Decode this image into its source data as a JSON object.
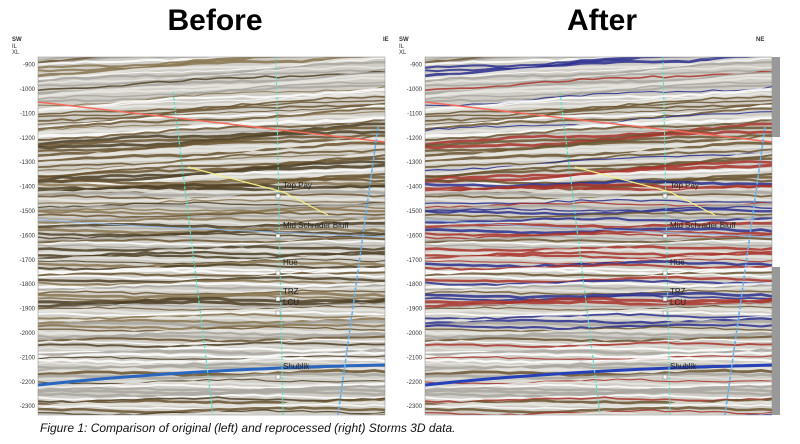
{
  "panels": [
    {
      "title": "Before",
      "left_label": "SW",
      "right_label": "IE",
      "axis_labels": [
        "IL",
        "XL"
      ],
      "depth_ticks": [
        "-900",
        "-1000",
        "-1100",
        "-1200",
        "-1300",
        "-1400",
        "-1500",
        "-1600",
        "-1700",
        "-1800",
        "-1900",
        "-2000",
        "-2100",
        "-2200",
        "-2300"
      ],
      "horizons": [
        "Top Pay",
        "Mid Schrader Bluff",
        "Hue",
        "TRZ",
        "LCU",
        "Shublik"
      ]
    },
    {
      "title": "After",
      "left_label": "SW",
      "right_label": "NE",
      "axis_labels": [
        "IL",
        "XL"
      ],
      "depth_ticks": [
        "-900",
        "-1000",
        "-1100",
        "-1200",
        "-1300",
        "-1400",
        "-1500",
        "-1600",
        "-1700",
        "-1800",
        "-1900",
        "-2000",
        "-2100",
        "-2200",
        "-2300"
      ],
      "horizons": [
        "Top Pay",
        "Mid Schrader Bluff",
        "Hue",
        "TRZ",
        "LCU",
        "Shublik"
      ]
    }
  ],
  "caption": "Figure 1: Comparison of original (left) and reprocessed (right) Storms 3D data."
}
